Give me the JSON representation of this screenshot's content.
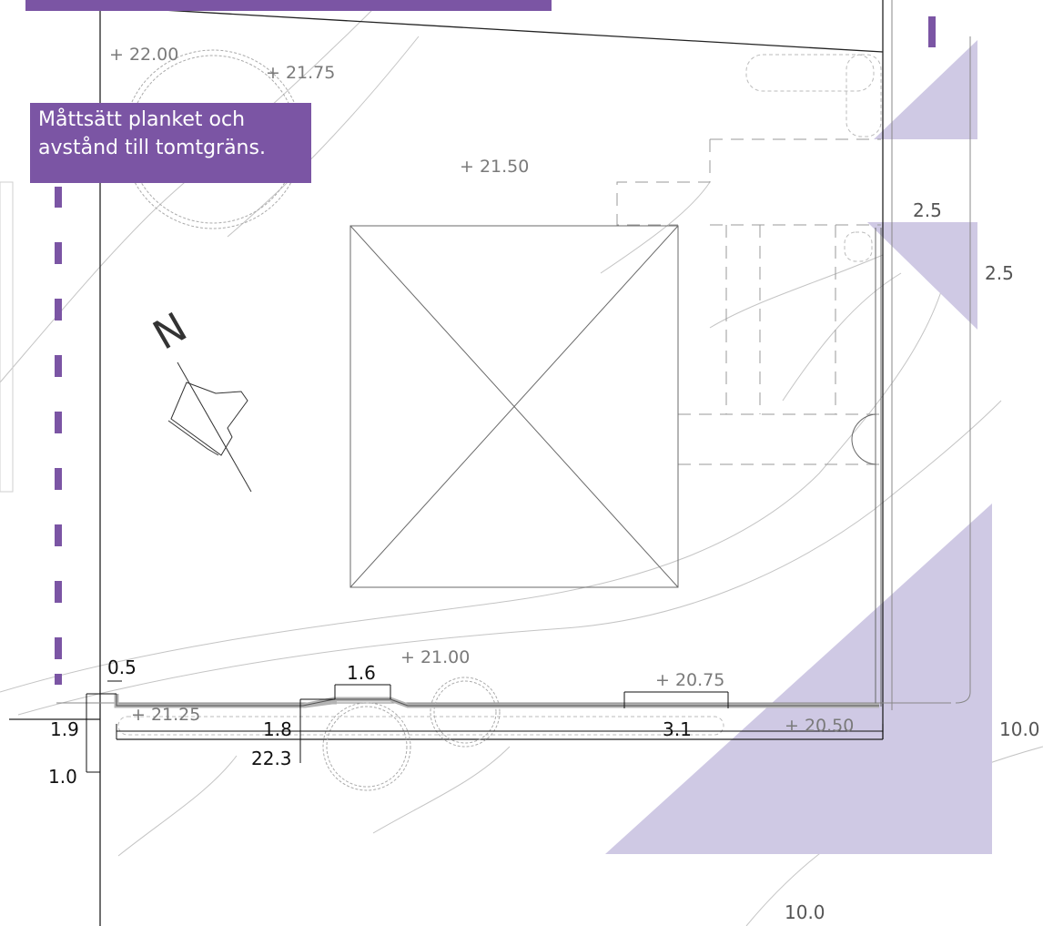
{
  "callout": {
    "line1": "Måttsätt planket och",
    "line2": "avstånd till tomtgräns."
  },
  "colors": {
    "accent": "#7b55a4",
    "visibility_triangle": "#cfc9e4",
    "plank": "#b3b3b3",
    "lines": "#555555"
  },
  "north_label": "N",
  "elevations": [
    "+ 22.00",
    "+ 21.75",
    "+ 21.50",
    "+ 21.25",
    "+ 21.00",
    "+ 20.75",
    "+ 20.50"
  ],
  "dimensions": {
    "post": "0.5",
    "top_ext": "1.6",
    "low_height": "1.9",
    "offset": "1.0",
    "bay_height": "1.8",
    "segment": "3.1",
    "total_length": "22.3",
    "small_tri_w": "2.5",
    "small_tri_h": "2.5",
    "large_tri_h": "10.0",
    "large_tri_w": "10.0"
  }
}
